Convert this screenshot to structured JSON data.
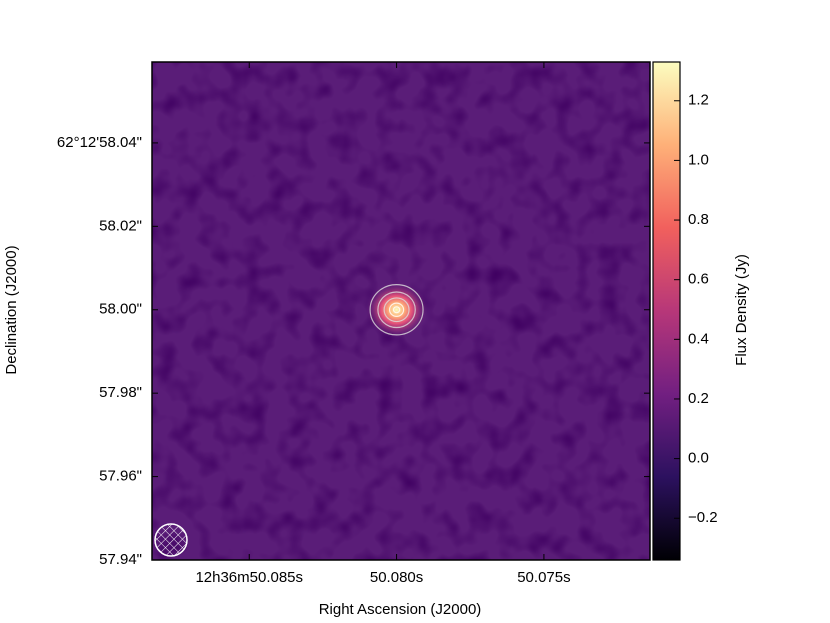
{
  "chart_data": {
    "type": "image",
    "x_label": "Right Ascension (J2000)",
    "y_label": "Declination (J2000)",
    "colorbar_label": "Flux Density (Jy)",
    "xlim": [
      50.0883,
      50.0714
    ],
    "xticks": [
      {
        "value": 50.085,
        "label": "12h36m50.085s"
      },
      {
        "value": 50.08,
        "label": "50.080s"
      },
      {
        "value": 50.075,
        "label": "50.075s"
      }
    ],
    "ylim": [
      57.94,
      58.0594
    ],
    "yticks": [
      {
        "value": 57.94,
        "label": "57.94\""
      },
      {
        "value": 57.96,
        "label": "57.96\""
      },
      {
        "value": 57.98,
        "label": "57.98\""
      },
      {
        "value": 58.0,
        "label": "58.00\""
      },
      {
        "value": 58.02,
        "label": "58.02\""
      },
      {
        "value": 58.04,
        "label": "62°12'58.04\""
      }
    ],
    "clim": [
      -0.34,
      1.33
    ],
    "cticks": [
      {
        "value": -0.2,
        "label": "−0.2"
      },
      {
        "value": 0,
        "label": "0.0"
      },
      0.2,
      0.4,
      0.6,
      0.8,
      {
        "value": 1,
        "label": "1.0"
      },
      1.2
    ],
    "colors": [
      "#000004",
      "#2c115f",
      "#721f81",
      "#b73779",
      "#f1605d",
      "#feb078",
      "#fcfdbf"
    ],
    "peak": {
      "x": 50.08,
      "y": 58.0,
      "value": 1.3
    }
  }
}
